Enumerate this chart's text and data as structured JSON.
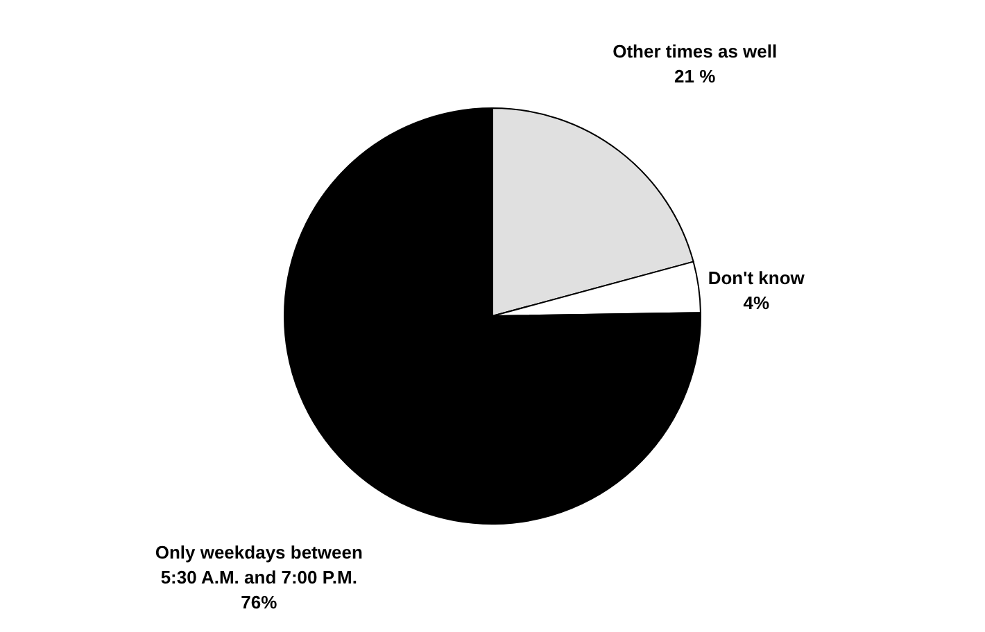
{
  "chart_data": {
    "type": "pie",
    "categories": [
      "Other times as well",
      "Don't know",
      "Only weekdays between\n5:30 A.M. and 7:00 P.M."
    ],
    "values": [
      21,
      4,
      76
    ],
    "value_labels": [
      "21 %",
      "4%",
      "76%"
    ],
    "colors": [
      "#e0e0e0",
      "#ffffff",
      "#000000"
    ],
    "legend": false
  }
}
